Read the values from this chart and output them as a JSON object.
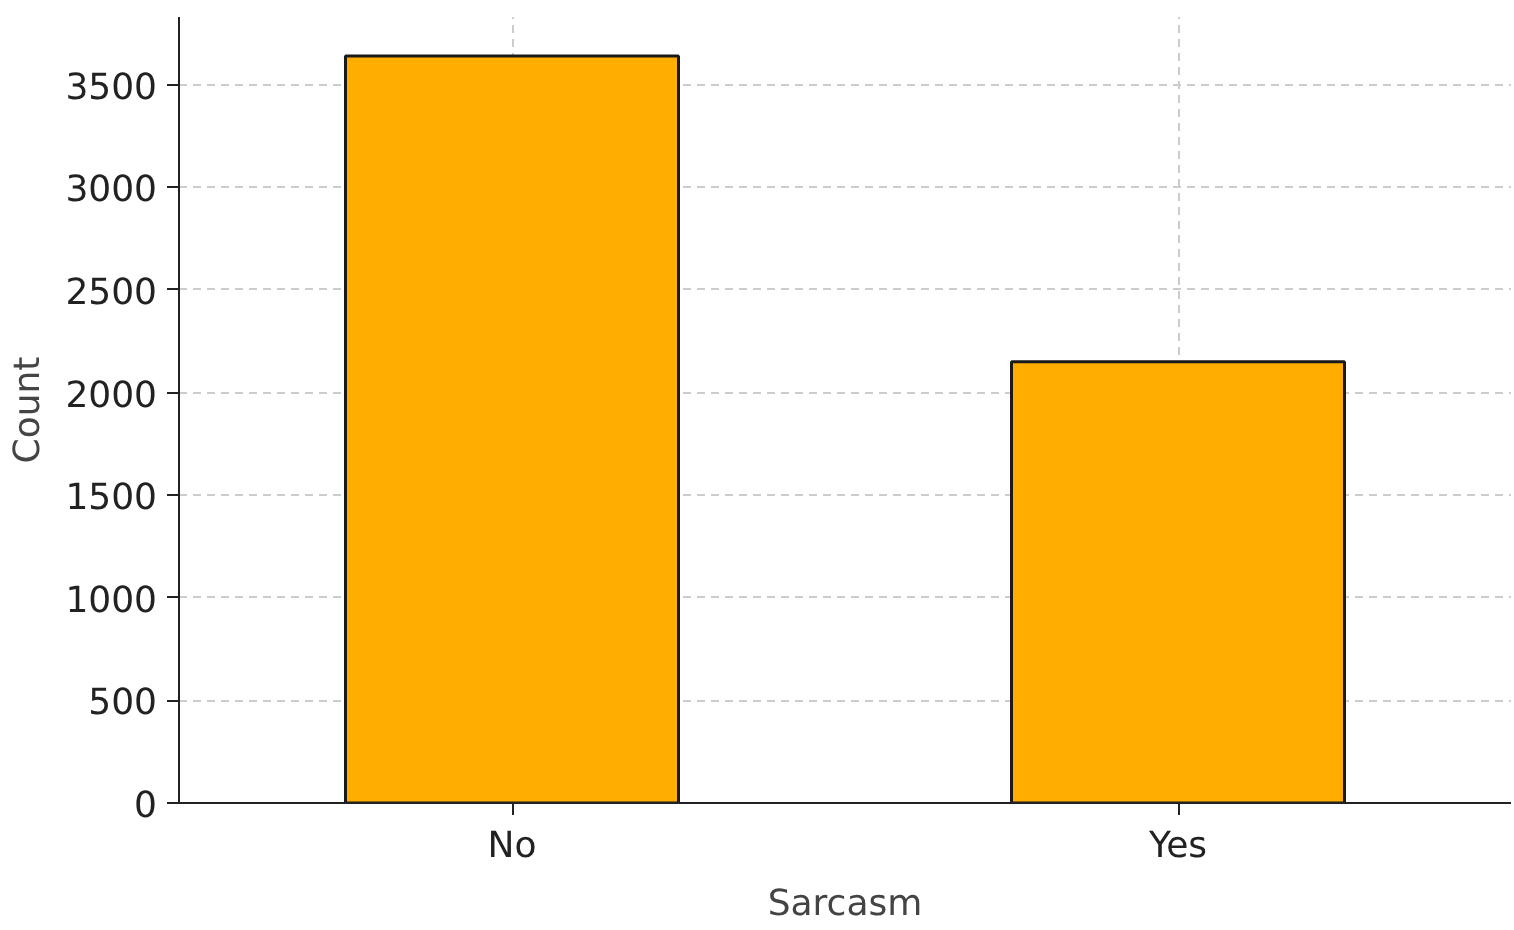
{
  "chart_data": {
    "type": "bar",
    "xlabel": "Sarcasm",
    "ylabel": "Count",
    "categories": [
      "No",
      "Yes"
    ],
    "values": [
      3640,
      2150
    ],
    "color": "#ffae00",
    "ylim": [
      0,
      3830
    ],
    "yticks": [
      0,
      500,
      1000,
      1500,
      2000,
      2500,
      3000,
      3500
    ],
    "grid": true
  }
}
